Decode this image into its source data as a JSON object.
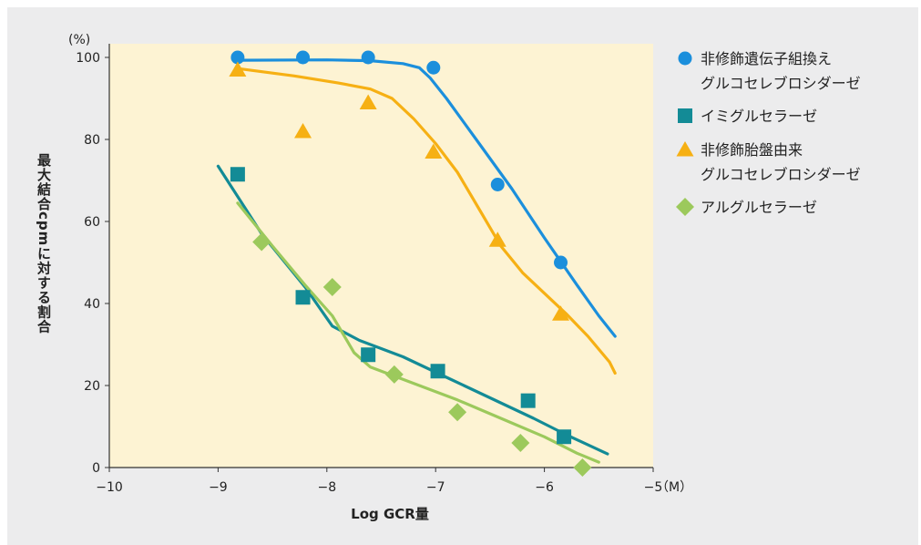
{
  "chart_data": {
    "type": "scatter",
    "xlabel": "Log GCR量",
    "ylabel": "最大結合cpmに対する割合",
    "y_unit": "(%)",
    "x_unit": "（M）",
    "xlim": [
      -10,
      -5
    ],
    "ylim": [
      0,
      100
    ],
    "x_ticks": [
      -10,
      -9,
      -8,
      -7,
      -6,
      -5
    ],
    "x_tick_labels": [
      "−10",
      "−9",
      "−8",
      "−7",
      "−6",
      "−5"
    ],
    "y_ticks": [
      0,
      20,
      40,
      60,
      80,
      100
    ],
    "y_tick_labels": [
      "0",
      "20",
      "40",
      "60",
      "80",
      "100"
    ],
    "grid": false,
    "legend_position": "right",
    "series": [
      {
        "name": "非修飾遺伝子組換え\nグルコセレブロシダーゼ",
        "label_lines": [
          "非修飾遺伝子組換え",
          "グルコセレブロシダーゼ"
        ],
        "marker": "circle",
        "color": "#1b8fdc",
        "points": [
          [
            -8.82,
            100
          ],
          [
            -8.22,
            100
          ],
          [
            -7.62,
            100
          ],
          [
            -7.02,
            97.5
          ],
          [
            -6.43,
            69
          ],
          [
            -5.85,
            50
          ]
        ],
        "curve": [
          [
            -8.82,
            99.3
          ],
          [
            -8.0,
            99.4
          ],
          [
            -7.6,
            99.2
          ],
          [
            -7.3,
            98.5
          ],
          [
            -7.15,
            97.5
          ],
          [
            -7.05,
            95
          ],
          [
            -6.9,
            90
          ],
          [
            -6.6,
            79
          ],
          [
            -6.3,
            68
          ],
          [
            -6.0,
            56
          ],
          [
            -5.7,
            44.5
          ],
          [
            -5.5,
            37
          ],
          [
            -5.35,
            32
          ]
        ]
      },
      {
        "name": "イミグルセラーゼ",
        "label_lines": [
          "イミグルセラーゼ"
        ],
        "marker": "square",
        "color": "#138b96",
        "points": [
          [
            -8.82,
            71.5
          ],
          [
            -8.22,
            41.5
          ],
          [
            -7.62,
            27.5
          ],
          [
            -6.98,
            23.5
          ],
          [
            -6.15,
            16.3
          ],
          [
            -5.82,
            7.5
          ]
        ],
        "curve": [
          [
            -9.0,
            73.5
          ],
          [
            -8.6,
            57
          ],
          [
            -8.2,
            44
          ],
          [
            -7.95,
            34.5
          ],
          [
            -7.7,
            31
          ],
          [
            -7.3,
            27
          ],
          [
            -6.9,
            22
          ],
          [
            -6.5,
            17
          ],
          [
            -6.1,
            12
          ],
          [
            -5.8,
            8
          ],
          [
            -5.42,
            3.3
          ]
        ]
      },
      {
        "name": "非修飾胎盤由来\nグルコセレブロシダーゼ",
        "label_lines": [
          "非修飾胎盤由来",
          "グルコセレブロシダーゼ"
        ],
        "marker": "triangle",
        "color": "#f6b014",
        "points": [
          [
            -8.82,
            97
          ],
          [
            -8.22,
            82
          ],
          [
            -7.62,
            89
          ],
          [
            -7.02,
            77
          ],
          [
            -6.43,
            55.5
          ],
          [
            -5.85,
            37.5
          ]
        ],
        "curve": [
          [
            -8.82,
            97.3
          ],
          [
            -8.3,
            95.5
          ],
          [
            -7.9,
            93.8
          ],
          [
            -7.6,
            92.3
          ],
          [
            -7.4,
            90
          ],
          [
            -7.2,
            85
          ],
          [
            -7.0,
            79
          ],
          [
            -6.8,
            72
          ],
          [
            -6.6,
            63
          ],
          [
            -6.4,
            54
          ],
          [
            -6.2,
            47.5
          ],
          [
            -6.0,
            42.5
          ],
          [
            -5.8,
            37.5
          ],
          [
            -5.6,
            32
          ],
          [
            -5.4,
            25.7
          ],
          [
            -5.35,
            23
          ]
        ]
      },
      {
        "name": "アルグルセラーゼ",
        "label_lines": [
          "アルグルセラーゼ"
        ],
        "marker": "diamond",
        "color": "#9cc95c",
        "points": [
          [
            -8.6,
            55
          ],
          [
            -7.95,
            44
          ],
          [
            -7.38,
            22.7
          ],
          [
            -6.8,
            13.5
          ],
          [
            -6.22,
            6
          ],
          [
            -5.65,
            0
          ]
        ],
        "curve": [
          [
            -8.82,
            64.5
          ],
          [
            -8.5,
            54
          ],
          [
            -8.2,
            44.5
          ],
          [
            -7.95,
            37
          ],
          [
            -7.75,
            28
          ],
          [
            -7.6,
            24.5
          ],
          [
            -7.2,
            20.5
          ],
          [
            -6.8,
            16.5
          ],
          [
            -6.4,
            12
          ],
          [
            -6.0,
            7.5
          ],
          [
            -5.7,
            3.5
          ],
          [
            -5.5,
            1.3
          ]
        ]
      }
    ]
  }
}
